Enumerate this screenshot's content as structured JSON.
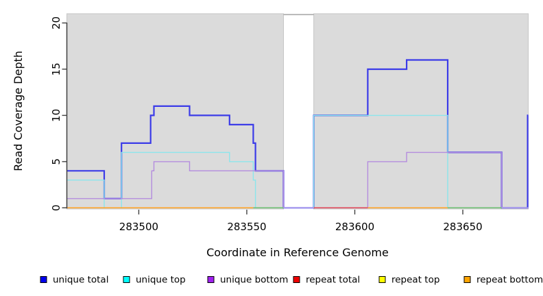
{
  "chart_data": {
    "type": "line",
    "subtype": "step-coverage-plot",
    "title": "",
    "xlabel": "Coordinate in Reference Genome",
    "ylabel": "Read Coverage Depth",
    "xlim": [
      283466.7,
      283680.3
    ],
    "ylim": [
      0,
      21
    ],
    "x_ticks": [
      "283500",
      "283550",
      "283600",
      "283650"
    ],
    "x_tick_values": [
      283500,
      283550,
      283600,
      283650
    ],
    "y_ticks": [
      "0",
      "5",
      "10",
      "15",
      "20"
    ],
    "y_tick_values": [
      0,
      5,
      10,
      15,
      20
    ],
    "grid": false,
    "legend_position": "bottom",
    "plot_bg": "#ffffff",
    "region_fill": "#dbdbdb",
    "region_edge": "#c6c6c6",
    "background_regions": [
      {
        "x1": 283466.7,
        "x2": 283567,
        "label": "left-coverage-region"
      },
      {
        "x1": 283581,
        "x2": 283680.3,
        "label": "right-coverage-region"
      }
    ],
    "gap": {
      "x1": 283567,
      "x2": 283581,
      "top_line_color": "#a8a8a8"
    },
    "series": [
      {
        "name": "unique total",
        "line_color": "#3b3be8",
        "legend_color": "#0000ee",
        "lwd": 2.2,
        "segments": [
          {
            "steps": [
              [
                283466.7,
                4
              ],
              [
                283484,
                1
              ],
              [
                283492,
                7
              ],
              [
                283505.5,
                10
              ],
              [
                283507,
                11
              ],
              [
                283523.5,
                10
              ],
              [
                283542,
                9
              ],
              [
                283553,
                7
              ],
              [
                283554,
                4
              ],
              [
                283567,
                0
              ],
              [
                283581,
                10
              ],
              [
                283606,
                15
              ],
              [
                283624,
                16
              ],
              [
                283643,
                6
              ],
              [
                283668,
                0
              ],
              [
                283680,
                10
              ]
            ],
            "end": 283680.3
          }
        ]
      },
      {
        "name": "unique top",
        "line_color": "#8be6ec",
        "legend_color": "#00ffff",
        "lwd": 1.4,
        "segments": [
          {
            "steps": [
              [
                283466.7,
                3
              ],
              [
                283484,
                0
              ],
              [
                283492,
                6
              ],
              [
                283542,
                5
              ],
              [
                283553,
                3
              ],
              [
                283554,
                0
              ],
              [
                283581,
                10
              ],
              [
                283643,
                0
              ]
            ],
            "end": 283680
          }
        ]
      },
      {
        "name": "unique bottom",
        "line_color": "#b48cde",
        "legend_color": "#a020f0",
        "lwd": 1.4,
        "segments": [
          {
            "steps": [
              [
                283466.7,
                1
              ],
              [
                283506,
                4
              ],
              [
                283507,
                5
              ],
              [
                283523.5,
                4
              ],
              [
                283567,
                0
              ],
              [
                283606,
                5
              ],
              [
                283624,
                6
              ],
              [
                283668,
                0
              ]
            ],
            "end": 283680
          }
        ]
      },
      {
        "name": "repeat total",
        "line_color": "#e0485a",
        "legend_color": "#ee0000",
        "lwd": 1.6,
        "segments": [
          {
            "steps": [
              [
                283581,
                0
              ]
            ],
            "end": 283606
          }
        ]
      },
      {
        "name": "repeat top",
        "line_color": "#ffff00",
        "legend_color": "#ffff00",
        "lwd": 1.6,
        "segments": []
      },
      {
        "name": "repeat bottom",
        "line_color": "#ffa428",
        "legend_color": "#ffa500",
        "lwd": 1.6,
        "segments": [
          {
            "steps": [
              [
                283466.7,
                0
              ]
            ],
            "end": 283553
          },
          {
            "steps": [
              [
                283606,
                0
              ]
            ],
            "end": 283643
          }
        ]
      }
    ],
    "baseline_artifacts": [
      {
        "x1": 283553,
        "x2": 283567,
        "color": "#6fbf73",
        "label": "green-zero-overlap"
      },
      {
        "x1": 283643,
        "x2": 283668,
        "color": "#6fbf73",
        "label": "green-zero-overlap"
      },
      {
        "x1": 283567,
        "x2": 283581,
        "color": "#b4a4ee",
        "label": "lavender-zero-overlap"
      },
      {
        "x1": 283668,
        "x2": 283680.3,
        "color": "#b4a4ee",
        "label": "lavender-zero-overlap"
      }
    ]
  }
}
